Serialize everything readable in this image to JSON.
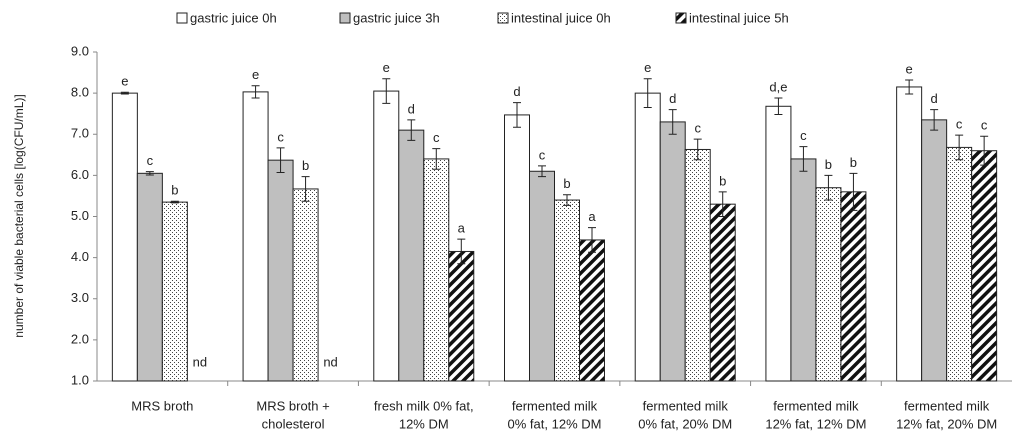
{
  "chart_data": {
    "type": "bar",
    "y_label": "number of viable bacterial cells [log(CFU/mL)]",
    "categories": [
      [
        "MRS broth"
      ],
      [
        "MRS broth +",
        "cholesterol"
      ],
      [
        "fresh milk 0% fat,",
        "12% DM"
      ],
      [
        "fermented milk",
        "0% fat, 12% DM"
      ],
      [
        "fermented milk",
        "0% fat, 20% DM"
      ],
      [
        "fermented milk",
        "12% fat, 12% DM"
      ],
      [
        "fermented milk",
        "12% fat, 20% DM"
      ]
    ],
    "series": [
      {
        "name": "gastric juice 0h",
        "color": "#ffffff",
        "pattern": "solid",
        "values": [
          8.0,
          8.03,
          8.05,
          7.47,
          8.0,
          7.68,
          8.15
        ],
        "errors": [
          0.02,
          0.15,
          0.3,
          0.3,
          0.35,
          0.2,
          0.17
        ],
        "letters": [
          "e",
          "e",
          "e",
          "d",
          "e",
          "d,e",
          "e"
        ]
      },
      {
        "name": "gastric juice 3h",
        "color": "#bfbfbf",
        "pattern": "solid",
        "values": [
          6.05,
          6.37,
          7.1,
          6.1,
          7.3,
          6.4,
          7.35
        ],
        "errors": [
          0.04,
          0.3,
          0.25,
          0.13,
          0.3,
          0.3,
          0.25
        ],
        "letters": [
          "c",
          "c",
          "d",
          "c",
          "d",
          "c",
          "d"
        ]
      },
      {
        "name": "intestinal juice 0h",
        "color": "#444444",
        "pattern": "dots",
        "values": [
          5.35,
          5.67,
          6.4,
          5.4,
          6.63,
          5.7,
          6.68
        ],
        "errors": [
          0.02,
          0.3,
          0.25,
          0.13,
          0.25,
          0.3,
          0.3
        ],
        "letters": [
          "b",
          "b",
          "c",
          "b",
          "c",
          "b",
          "c"
        ]
      },
      {
        "name": "intestinal juice 5h",
        "color": "#111111",
        "pattern": "hatch",
        "values": [
          null,
          null,
          4.15,
          4.43,
          5.3,
          5.6,
          6.6
        ],
        "errors": [
          null,
          null,
          0.3,
          0.3,
          0.3,
          0.45,
          0.35
        ],
        "letters": [
          "nd",
          "nd",
          "a",
          "a",
          "b",
          "b",
          "c"
        ]
      }
    ],
    "ylim": [
      1,
      9
    ],
    "yticks": [
      {
        "value": 1,
        "label": "1.0"
      },
      {
        "value": 2,
        "label": "2.0"
      },
      {
        "value": 3,
        "label": "3.0"
      },
      {
        "value": 4,
        "label": "4.0"
      },
      {
        "value": 5,
        "label": "5.0"
      },
      {
        "value": 6,
        "label": "6.0"
      },
      {
        "value": 7,
        "label": "7.0"
      },
      {
        "value": 8,
        "label": "8.0"
      },
      {
        "value": 9,
        "label": "9.0"
      }
    ],
    "grid": false,
    "legend": "top"
  }
}
